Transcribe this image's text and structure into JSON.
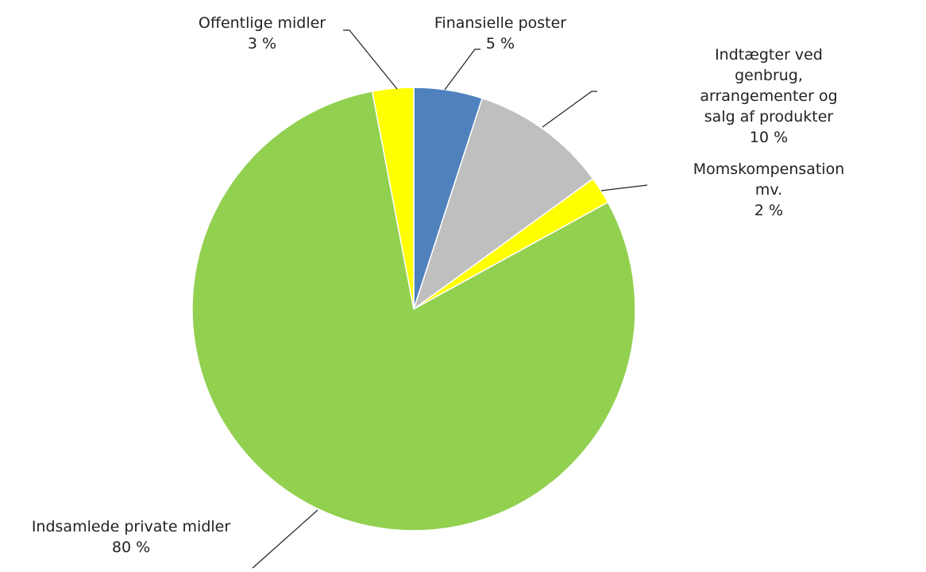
{
  "chart_data": {
    "type": "pie",
    "categories": [
      "Finansielle poster",
      "Indtægter ved genbrug,\narrangementer og salg af produkter",
      "Momskompensation mv.",
      "Indsamlede private midler",
      "Offentlige midler"
    ],
    "values": [
      5,
      10,
      2,
      80,
      3
    ],
    "value_labels": [
      "5 %",
      "10 %",
      "2 %",
      "80 %",
      "3 %"
    ],
    "colors": [
      "#4f81bd",
      "#bfbfbf",
      "#ffff00",
      "#92d050",
      "#ffff00"
    ]
  }
}
